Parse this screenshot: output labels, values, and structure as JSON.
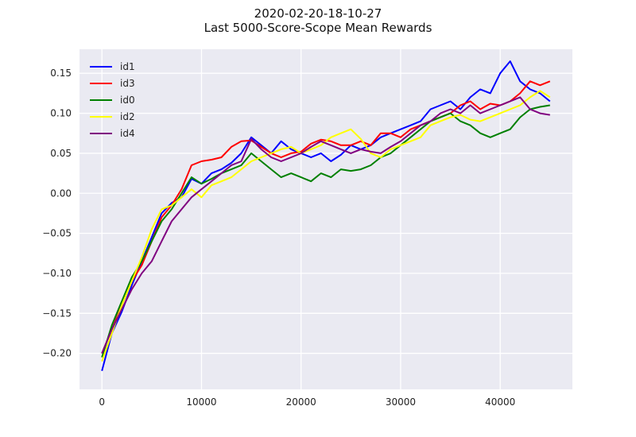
{
  "chart_data": {
    "type": "line",
    "title": "2020-02-20-18-10-27",
    "subtitle": "Last 5000-Score-Scope Mean Rewards",
    "xlabel": "",
    "ylabel": "",
    "xlim": [
      -2250,
      47250
    ],
    "ylim": [
      -0.245,
      0.18
    ],
    "x_ticks": [
      0,
      10000,
      20000,
      30000,
      40000
    ],
    "x_tick_labels": [
      "0",
      "10000",
      "20000",
      "30000",
      "40000"
    ],
    "y_ticks": [
      -0.2,
      -0.15,
      -0.1,
      -0.05,
      0.0,
      0.05,
      0.1,
      0.15
    ],
    "y_tick_labels": [
      "−0.20",
      "−0.15",
      "−0.10",
      "−0.05",
      "0.00",
      "0.05",
      "0.10",
      "0.15"
    ],
    "grid": true,
    "background": "#eaeaf2",
    "legend_position": "upper left",
    "series": [
      {
        "name": "id1",
        "color": "#0000ff",
        "x": [
          0,
          1000,
          2000,
          3000,
          4000,
          5000,
          6000,
          7000,
          8000,
          9000,
          10000,
          11000,
          12000,
          13000,
          14000,
          15000,
          16000,
          17000,
          18000,
          19000,
          20000,
          21000,
          22000,
          23000,
          24000,
          25000,
          26000,
          27000,
          28000,
          29000,
          30000,
          31000,
          32000,
          33000,
          34000,
          35000,
          36000,
          37000,
          38000,
          39000,
          40000,
          41000,
          42000,
          43000,
          44000,
          45000
        ],
        "y": [
          -0.222,
          -0.175,
          -0.148,
          -0.115,
          -0.085,
          -0.055,
          -0.025,
          -0.012,
          -0.005,
          0.018,
          0.012,
          0.025,
          0.03,
          0.038,
          0.05,
          0.07,
          0.06,
          0.05,
          0.065,
          0.055,
          0.05,
          0.045,
          0.05,
          0.04,
          0.048,
          0.06,
          0.055,
          0.06,
          0.07,
          0.075,
          0.08,
          0.085,
          0.09,
          0.105,
          0.11,
          0.115,
          0.105,
          0.12,
          0.13,
          0.125,
          0.15,
          0.165,
          0.14,
          0.13,
          0.125,
          0.115
        ]
      },
      {
        "name": "id3",
        "color": "#ff0000",
        "x": [
          0,
          1000,
          2000,
          3000,
          4000,
          5000,
          6000,
          7000,
          8000,
          9000,
          10000,
          11000,
          12000,
          13000,
          14000,
          15000,
          16000,
          17000,
          18000,
          19000,
          20000,
          21000,
          22000,
          23000,
          24000,
          25000,
          26000,
          27000,
          28000,
          29000,
          30000,
          31000,
          32000,
          33000,
          34000,
          35000,
          36000,
          37000,
          38000,
          39000,
          40000,
          41000,
          42000,
          43000,
          44000,
          45000
        ],
        "y": [
          -0.2,
          -0.17,
          -0.14,
          -0.11,
          -0.09,
          -0.06,
          -0.03,
          -0.015,
          0.005,
          0.035,
          0.04,
          0.042,
          0.045,
          0.058,
          0.065,
          0.066,
          0.058,
          0.05,
          0.045,
          0.05,
          0.052,
          0.062,
          0.067,
          0.065,
          0.06,
          0.06,
          0.065,
          0.06,
          0.075,
          0.075,
          0.07,
          0.08,
          0.085,
          0.09,
          0.095,
          0.1,
          0.11,
          0.115,
          0.105,
          0.112,
          0.11,
          0.115,
          0.125,
          0.14,
          0.135,
          0.14
        ]
      },
      {
        "name": "id0",
        "color": "#008000",
        "x": [
          0,
          1000,
          2000,
          3000,
          4000,
          5000,
          6000,
          7000,
          8000,
          9000,
          10000,
          11000,
          12000,
          13000,
          14000,
          15000,
          16000,
          17000,
          18000,
          19000,
          20000,
          21000,
          22000,
          23000,
          24000,
          25000,
          26000,
          27000,
          28000,
          29000,
          30000,
          31000,
          32000,
          33000,
          34000,
          35000,
          36000,
          37000,
          38000,
          39000,
          40000,
          41000,
          42000,
          43000,
          44000,
          45000
        ],
        "y": [
          -0.205,
          -0.165,
          -0.135,
          -0.105,
          -0.085,
          -0.06,
          -0.035,
          -0.02,
          0.0,
          0.02,
          0.012,
          0.018,
          0.025,
          0.03,
          0.035,
          0.05,
          0.04,
          0.03,
          0.02,
          0.025,
          0.02,
          0.015,
          0.025,
          0.02,
          0.03,
          0.028,
          0.03,
          0.035,
          0.045,
          0.05,
          0.06,
          0.07,
          0.08,
          0.09,
          0.095,
          0.1,
          0.09,
          0.085,
          0.075,
          0.07,
          0.075,
          0.08,
          0.095,
          0.105,
          0.108,
          0.11
        ]
      },
      {
        "name": "id2",
        "color": "#ffff00",
        "x": [
          0,
          1000,
          2000,
          3000,
          4000,
          5000,
          6000,
          7000,
          8000,
          9000,
          10000,
          11000,
          12000,
          13000,
          14000,
          15000,
          16000,
          17000,
          18000,
          19000,
          20000,
          21000,
          22000,
          23000,
          24000,
          25000,
          26000,
          27000,
          28000,
          29000,
          30000,
          31000,
          32000,
          33000,
          34000,
          35000,
          36000,
          37000,
          38000,
          39000,
          40000,
          41000,
          42000,
          43000,
          44000,
          45000
        ],
        "y": [
          -0.21,
          -0.175,
          -0.14,
          -0.11,
          -0.08,
          -0.045,
          -0.02,
          -0.015,
          -0.005,
          0.005,
          -0.005,
          0.01,
          0.015,
          0.02,
          0.03,
          0.04,
          0.045,
          0.05,
          0.055,
          0.058,
          0.05,
          0.055,
          0.06,
          0.07,
          0.075,
          0.08,
          0.068,
          0.05,
          0.045,
          0.055,
          0.06,
          0.065,
          0.07,
          0.085,
          0.09,
          0.095,
          0.098,
          0.092,
          0.09,
          0.095,
          0.1,
          0.105,
          0.11,
          0.12,
          0.128,
          0.12
        ]
      },
      {
        "name": "id4",
        "color": "#800080",
        "x": [
          0,
          1000,
          2000,
          3000,
          4000,
          5000,
          6000,
          7000,
          8000,
          9000,
          10000,
          11000,
          12000,
          13000,
          14000,
          15000,
          16000,
          17000,
          18000,
          19000,
          20000,
          21000,
          22000,
          23000,
          24000,
          25000,
          26000,
          27000,
          28000,
          29000,
          30000,
          31000,
          32000,
          33000,
          34000,
          35000,
          36000,
          37000,
          38000,
          39000,
          40000,
          41000,
          42000,
          43000,
          44000,
          45000
        ],
        "y": [
          -0.2,
          -0.17,
          -0.145,
          -0.12,
          -0.1,
          -0.085,
          -0.06,
          -0.035,
          -0.02,
          -0.005,
          0.005,
          0.015,
          0.025,
          0.035,
          0.04,
          0.068,
          0.055,
          0.045,
          0.04,
          0.045,
          0.05,
          0.058,
          0.065,
          0.06,
          0.055,
          0.05,
          0.055,
          0.052,
          0.05,
          0.058,
          0.065,
          0.075,
          0.085,
          0.09,
          0.1,
          0.105,
          0.1,
          0.11,
          0.1,
          0.105,
          0.11,
          0.115,
          0.12,
          0.105,
          0.1,
          0.098
        ]
      }
    ]
  }
}
